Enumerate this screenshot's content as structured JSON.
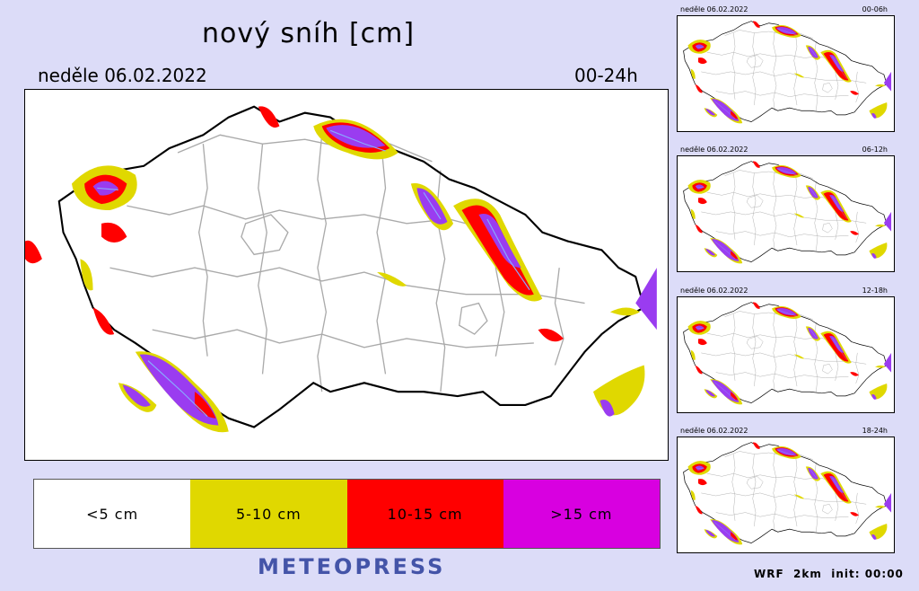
{
  "header": {
    "title": "nový sníh [cm]",
    "date": "neděle 06.02.2022",
    "range": "00-24h"
  },
  "legend": {
    "items": [
      {
        "label": "<5 cm",
        "color": "#ffffff"
      },
      {
        "label": "5-10 cm",
        "color": "#e0d800"
      },
      {
        "label": "10-15 cm",
        "color": "#ff0000"
      },
      {
        "label": ">15 cm",
        "color": "#d800e0"
      }
    ]
  },
  "brand": "METEOPRESS",
  "thumbnails": [
    {
      "date": "neděle 06.02.2022",
      "range": "00-06h"
    },
    {
      "date": "neděle 06.02.2022",
      "range": "06-12h"
    },
    {
      "date": "neděle 06.02.2022",
      "range": "12-18h"
    },
    {
      "date": "neděle 06.02.2022",
      "range": "18-24h"
    }
  ],
  "footer": "WRF  2km  init: 00:00",
  "colors": {
    "background": "#dcdcf8",
    "border_line": "#000000",
    "district_line": "#aaaaaa",
    "yellow": "#e0d800",
    "red": "#ff0000",
    "purple": "#9a3cf0",
    "magenta": "#d800e0",
    "brand": "#4454a8"
  }
}
